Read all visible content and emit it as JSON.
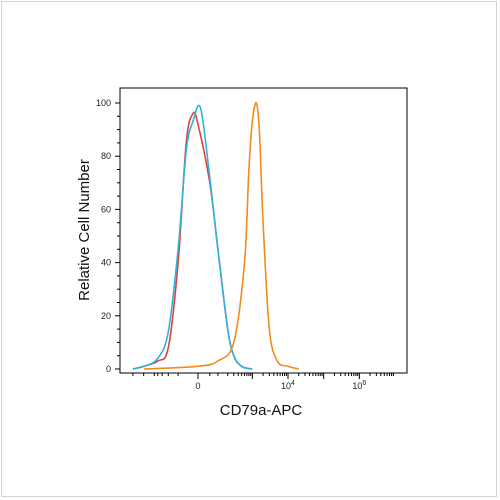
{
  "chart_data": {
    "type": "line",
    "title": "",
    "xlabel": "CD79a-APC",
    "ylabel": "Relative Cell Number",
    "ylim": [
      0,
      100
    ],
    "yticks": [
      "0",
      "20",
      "40",
      "60",
      "80",
      "100"
    ],
    "xtick_labels": [
      {
        "label": "0",
        "value": 0
      },
      {
        "label": "10",
        "exp": "4",
        "value": 10000
      },
      {
        "label": "10",
        "exp": "6",
        "value": 1000000
      }
    ],
    "x_scale": "biexponential",
    "grid": false,
    "legend": "none",
    "series": [
      {
        "color": "#e0413a",
        "points": [
          [
            -2000,
            0
          ],
          [
            -1000,
            1
          ],
          [
            -400,
            3
          ],
          [
            -200,
            8
          ],
          [
            -100,
            40
          ],
          [
            -50,
            85
          ],
          [
            -20,
            96
          ],
          [
            0,
            92
          ],
          [
            50,
            70
          ],
          [
            100,
            45
          ],
          [
            200,
            15
          ],
          [
            300,
            5
          ],
          [
            500,
            1
          ],
          [
            1000,
            0
          ]
        ]
      },
      {
        "color": "#2fb3de",
        "points": [
          [
            -2000,
            0
          ],
          [
            -1000,
            1
          ],
          [
            -400,
            4
          ],
          [
            -200,
            14
          ],
          [
            -100,
            45
          ],
          [
            -50,
            82
          ],
          [
            -20,
            93
          ],
          [
            10,
            98
          ],
          [
            50,
            72
          ],
          [
            100,
            45
          ],
          [
            200,
            15
          ],
          [
            300,
            5
          ],
          [
            500,
            1
          ],
          [
            1000,
            0
          ]
        ]
      },
      {
        "color": "#f28a1c",
        "points": [
          [
            -1000,
            0
          ],
          [
            0,
            1
          ],
          [
            100,
            3
          ],
          [
            300,
            10
          ],
          [
            600,
            40
          ],
          [
            800,
            75
          ],
          [
            1000,
            93
          ],
          [
            1300,
            100
          ],
          [
            1600,
            88
          ],
          [
            2000,
            55
          ],
          [
            3000,
            15
          ],
          [
            5000,
            3
          ],
          [
            10000,
            1
          ],
          [
            20000,
            0
          ]
        ]
      }
    ]
  },
  "colors": {
    "frame": "#000000",
    "border": "#d3d3d3"
  }
}
